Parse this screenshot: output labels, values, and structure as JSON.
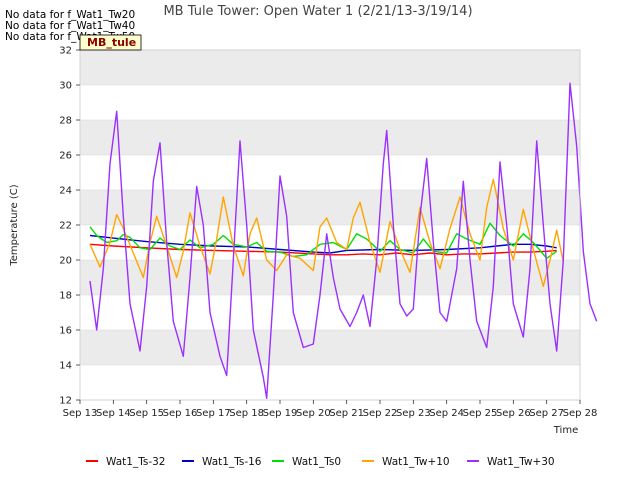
{
  "no_data_messages": [
    "No data for f_Wat1_Tw20",
    "No data for f_Wat1_Tw40",
    "No data for f_Wat1_Tw50"
  ],
  "badge": "MB_tule",
  "chart_data": {
    "type": "line",
    "title": "MB Tule Tower: Open Water 1 (2/21/13-3/19/14)",
    "xlabel": "Time",
    "ylabel": "Temperature (C)",
    "xlim": [
      13,
      28
    ],
    "ylim": [
      12,
      32
    ],
    "x_ticks": [
      {
        "v": 13,
        "label": "Sep 13"
      },
      {
        "v": 14,
        "label": "Sep 14"
      },
      {
        "v": 15,
        "label": "Sep 15"
      },
      {
        "v": 16,
        "label": "Sep 16"
      },
      {
        "v": 17,
        "label": "Sep 17"
      },
      {
        "v": 18,
        "label": "Sep 18"
      },
      {
        "v": 19,
        "label": "Sep 19"
      },
      {
        "v": 20,
        "label": "Sep 20"
      },
      {
        "v": 21,
        "label": "Sep 21"
      },
      {
        "v": 22,
        "label": "Sep 22"
      },
      {
        "v": 23,
        "label": "Sep 23"
      },
      {
        "v": 24,
        "label": "Sep 24"
      },
      {
        "v": 25,
        "label": "Sep 25"
      },
      {
        "v": 26,
        "label": "Sep 26"
      },
      {
        "v": 27,
        "label": "Sep 27"
      },
      {
        "v": 28,
        "label": "Sep 28"
      }
    ],
    "y_ticks": [
      12,
      14,
      16,
      18,
      20,
      22,
      24,
      26,
      28,
      30,
      32
    ],
    "grid": true,
    "legend_position": "bottom",
    "series": [
      {
        "name": "Wat1_Ts-32",
        "color": "#ff0000",
        "points": [
          [
            13.3,
            20.9
          ],
          [
            14.0,
            20.8
          ],
          [
            15.0,
            20.7
          ],
          [
            16.0,
            20.6
          ],
          [
            17.0,
            20.55
          ],
          [
            18.0,
            20.5
          ],
          [
            19.0,
            20.45
          ],
          [
            20.0,
            20.35
          ],
          [
            20.5,
            20.3
          ],
          [
            21.0,
            20.3
          ],
          [
            21.5,
            20.35
          ],
          [
            22.0,
            20.3
          ],
          [
            22.5,
            20.4
          ],
          [
            23.0,
            20.3
          ],
          [
            23.5,
            20.4
          ],
          [
            24.0,
            20.3
          ],
          [
            24.5,
            20.35
          ],
          [
            25.0,
            20.35
          ],
          [
            25.5,
            20.4
          ],
          [
            26.0,
            20.45
          ],
          [
            26.5,
            20.45
          ],
          [
            27.0,
            20.5
          ],
          [
            27.3,
            20.55
          ]
        ]
      },
      {
        "name": "Wat1_Ts-16",
        "color": "#0000cc",
        "points": [
          [
            13.3,
            21.4
          ],
          [
            14.0,
            21.25
          ],
          [
            15.0,
            21.05
          ],
          [
            16.0,
            20.9
          ],
          [
            17.0,
            20.8
          ],
          [
            18.0,
            20.75
          ],
          [
            19.0,
            20.6
          ],
          [
            20.0,
            20.45
          ],
          [
            20.5,
            20.4
          ],
          [
            21.0,
            20.55
          ],
          [
            22.0,
            20.6
          ],
          [
            23.0,
            20.55
          ],
          [
            24.0,
            20.6
          ],
          [
            25.0,
            20.7
          ],
          [
            25.5,
            20.8
          ],
          [
            26.0,
            20.9
          ],
          [
            26.5,
            20.9
          ],
          [
            27.0,
            20.8
          ],
          [
            27.3,
            20.7
          ]
        ]
      },
      {
        "name": "Wat1_Ts0",
        "color": "#00e000",
        "points": [
          [
            13.3,
            21.9
          ],
          [
            13.5,
            21.4
          ],
          [
            13.8,
            21.0
          ],
          [
            14.1,
            21.1
          ],
          [
            14.3,
            21.45
          ],
          [
            14.5,
            21.3
          ],
          [
            14.8,
            20.7
          ],
          [
            15.1,
            20.6
          ],
          [
            15.4,
            21.25
          ],
          [
            15.7,
            20.8
          ],
          [
            16.0,
            20.6
          ],
          [
            16.3,
            21.15
          ],
          [
            16.6,
            20.7
          ],
          [
            17.0,
            20.9
          ],
          [
            17.3,
            21.4
          ],
          [
            17.6,
            20.9
          ],
          [
            18.0,
            20.75
          ],
          [
            18.3,
            21.0
          ],
          [
            18.6,
            20.5
          ],
          [
            19.0,
            20.45
          ],
          [
            19.4,
            20.2
          ],
          [
            19.8,
            20.3
          ],
          [
            20.2,
            20.9
          ],
          [
            20.6,
            21.0
          ],
          [
            21.0,
            20.6
          ],
          [
            21.3,
            21.5
          ],
          [
            21.6,
            21.2
          ],
          [
            22.0,
            20.5
          ],
          [
            22.3,
            21.1
          ],
          [
            22.6,
            20.6
          ],
          [
            23.0,
            20.4
          ],
          [
            23.3,
            21.2
          ],
          [
            23.6,
            20.5
          ],
          [
            24.0,
            20.4
          ],
          [
            24.3,
            21.5
          ],
          [
            24.6,
            21.2
          ],
          [
            25.0,
            20.9
          ],
          [
            25.3,
            22.1
          ],
          [
            25.6,
            21.4
          ],
          [
            26.0,
            20.8
          ],
          [
            26.3,
            21.5
          ],
          [
            26.6,
            21.0
          ],
          [
            27.0,
            20.1
          ],
          [
            27.3,
            20.5
          ]
        ]
      },
      {
        "name": "Wat1_Tw+10",
        "color": "#ffa500",
        "points": [
          [
            13.3,
            20.9
          ],
          [
            13.6,
            19.6
          ],
          [
            13.9,
            21.0
          ],
          [
            14.1,
            22.6
          ],
          [
            14.3,
            21.8
          ],
          [
            14.6,
            20.4
          ],
          [
            14.9,
            19.0
          ],
          [
            15.1,
            21.0
          ],
          [
            15.3,
            22.5
          ],
          [
            15.6,
            20.8
          ],
          [
            15.9,
            19.0
          ],
          [
            16.1,
            20.5
          ],
          [
            16.3,
            22.7
          ],
          [
            16.6,
            20.8
          ],
          [
            16.9,
            19.2
          ],
          [
            17.1,
            21.2
          ],
          [
            17.3,
            23.6
          ],
          [
            17.6,
            20.8
          ],
          [
            17.9,
            19.1
          ],
          [
            18.1,
            21.5
          ],
          [
            18.3,
            22.4
          ],
          [
            18.6,
            20.0
          ],
          [
            18.9,
            19.4
          ],
          [
            19.2,
            20.3
          ],
          [
            19.6,
            20.1
          ],
          [
            20.0,
            19.4
          ],
          [
            20.2,
            21.9
          ],
          [
            20.4,
            22.4
          ],
          [
            20.7,
            21.0
          ],
          [
            21.0,
            20.6
          ],
          [
            21.2,
            22.4
          ],
          [
            21.4,
            23.3
          ],
          [
            21.7,
            21.0
          ],
          [
            22.0,
            19.3
          ],
          [
            22.3,
            22.2
          ],
          [
            22.6,
            20.6
          ],
          [
            22.9,
            19.3
          ],
          [
            23.2,
            23.0
          ],
          [
            23.5,
            21.0
          ],
          [
            23.8,
            19.5
          ],
          [
            24.1,
            21.8
          ],
          [
            24.4,
            23.6
          ],
          [
            24.7,
            21.5
          ],
          [
            25.0,
            20.0
          ],
          [
            25.2,
            23.0
          ],
          [
            25.4,
            24.6
          ],
          [
            25.7,
            21.8
          ],
          [
            26.0,
            20.0
          ],
          [
            26.3,
            22.9
          ],
          [
            26.6,
            20.6
          ],
          [
            26.9,
            18.5
          ],
          [
            27.1,
            20.0
          ],
          [
            27.3,
            21.7
          ],
          [
            27.5,
            19.9
          ]
        ]
      },
      {
        "name": "Wat1_Tw+30",
        "color": "#9b30ff",
        "points": [
          [
            13.3,
            18.8
          ],
          [
            13.5,
            16.0
          ],
          [
            13.7,
            19.5
          ],
          [
            13.9,
            25.5
          ],
          [
            14.1,
            28.5
          ],
          [
            14.3,
            22.5
          ],
          [
            14.5,
            17.5
          ],
          [
            14.8,
            14.8
          ],
          [
            15.0,
            18.5
          ],
          [
            15.2,
            24.5
          ],
          [
            15.4,
            26.7
          ],
          [
            15.6,
            21.0
          ],
          [
            15.8,
            16.5
          ],
          [
            16.1,
            14.5
          ],
          [
            16.3,
            19.0
          ],
          [
            16.5,
            24.2
          ],
          [
            16.7,
            22.0
          ],
          [
            16.9,
            17.0
          ],
          [
            17.2,
            14.5
          ],
          [
            17.4,
            13.4
          ],
          [
            17.6,
            20.0
          ],
          [
            17.8,
            26.8
          ],
          [
            18.0,
            22.0
          ],
          [
            18.2,
            16.0
          ],
          [
            18.5,
            13.3
          ],
          [
            18.6,
            12.1
          ],
          [
            18.8,
            18.0
          ],
          [
            19.0,
            24.8
          ],
          [
            19.2,
            22.5
          ],
          [
            19.4,
            17.0
          ],
          [
            19.7,
            15.0
          ],
          [
            20.0,
            15.2
          ],
          [
            20.2,
            18.0
          ],
          [
            20.4,
            21.5
          ],
          [
            20.6,
            19.0
          ],
          [
            20.8,
            17.2
          ],
          [
            21.1,
            16.2
          ],
          [
            21.3,
            17.0
          ],
          [
            21.5,
            18.0
          ],
          [
            21.7,
            16.2
          ],
          [
            21.9,
            20.0
          ],
          [
            22.1,
            25.5
          ],
          [
            22.2,
            27.4
          ],
          [
            22.4,
            22.0
          ],
          [
            22.6,
            17.5
          ],
          [
            22.8,
            16.8
          ],
          [
            23.0,
            17.2
          ],
          [
            23.2,
            22.5
          ],
          [
            23.4,
            25.8
          ],
          [
            23.6,
            21.0
          ],
          [
            23.8,
            17.0
          ],
          [
            24.0,
            16.5
          ],
          [
            24.3,
            19.5
          ],
          [
            24.5,
            24.5
          ],
          [
            24.7,
            20.0
          ],
          [
            24.9,
            16.5
          ],
          [
            25.2,
            15.0
          ],
          [
            25.4,
            18.5
          ],
          [
            25.6,
            25.6
          ],
          [
            25.8,
            22.0
          ],
          [
            26.0,
            17.5
          ],
          [
            26.3,
            15.6
          ],
          [
            26.5,
            19.5
          ],
          [
            26.7,
            26.8
          ],
          [
            26.9,
            22.0
          ],
          [
            27.1,
            17.5
          ],
          [
            27.3,
            14.8
          ],
          [
            27.5,
            20.0
          ],
          [
            27.7,
            30.1
          ],
          [
            27.9,
            26.5
          ],
          [
            28.1,
            20.5
          ],
          [
            28.3,
            17.5
          ],
          [
            28.5,
            16.5
          ]
        ]
      }
    ]
  }
}
